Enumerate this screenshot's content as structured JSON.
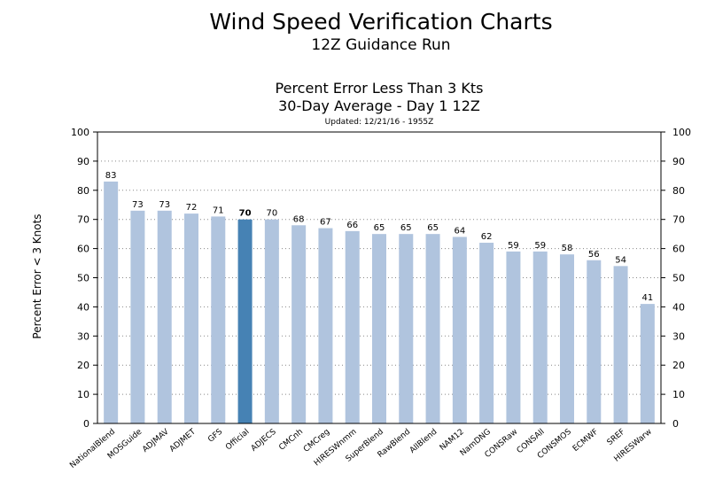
{
  "header": {
    "title": "Wind Speed Verification Charts",
    "subtitle": "12Z Guidance Run"
  },
  "chart_data": {
    "type": "bar",
    "title": "Percent Error Less Than 3 Kts",
    "subtitle": "30-Day Average - Day 1 12Z",
    "updated": "Updated: 12/21/16 - 1955Z",
    "xlabel": "",
    "ylabel": "Percent Error < 3 Knots",
    "ylim": [
      0,
      100
    ],
    "yticks": [
      0,
      10,
      20,
      30,
      40,
      50,
      60,
      70,
      80,
      90,
      100
    ],
    "grid": true,
    "categories": [
      "NationalBlend",
      "MOSGuide",
      "ADJMAV",
      "ADJMET",
      "GFS",
      "Official",
      "ADJECS",
      "CMCnh",
      "CMCreg",
      "HIRESWnmm",
      "SuperBlend",
      "RawBlend",
      "AllBlend",
      "NAM12",
      "NamDNG",
      "CONSRaw",
      "CONSAll",
      "CONSMOS",
      "ECMWF",
      "SREF",
      "HIRESWarw"
    ],
    "values": [
      83,
      73,
      73,
      72,
      71,
      70,
      70,
      68,
      67,
      66,
      65,
      65,
      65,
      64,
      62,
      59,
      59,
      58,
      56,
      54,
      41
    ],
    "highlight_category": "Official",
    "colors": {
      "bar": "#b0c4de",
      "highlight": "#4682b4",
      "grid": "#888888"
    }
  }
}
